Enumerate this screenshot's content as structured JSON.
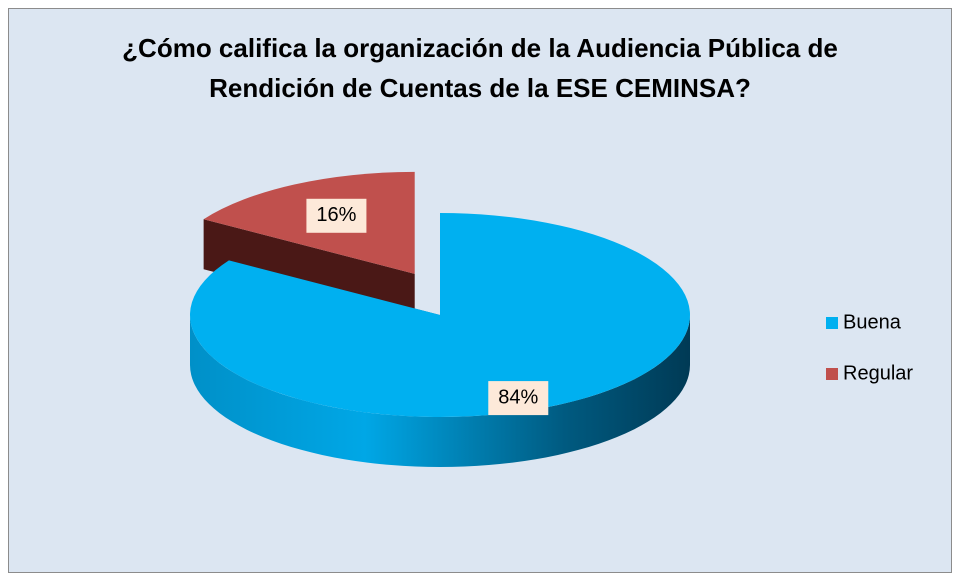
{
  "chart_data": {
    "type": "pie3d",
    "title": "¿Cómo califica la organización de la Audiencia Pública de Rendición de Cuentas de la ESE CEMINSA?",
    "categories": [
      "Buena",
      "Regular"
    ],
    "values": [
      84,
      16
    ],
    "value_labels": [
      "84%",
      "16%"
    ],
    "colors": [
      "#00b0f0",
      "#c0504d"
    ],
    "legend": "right"
  }
}
